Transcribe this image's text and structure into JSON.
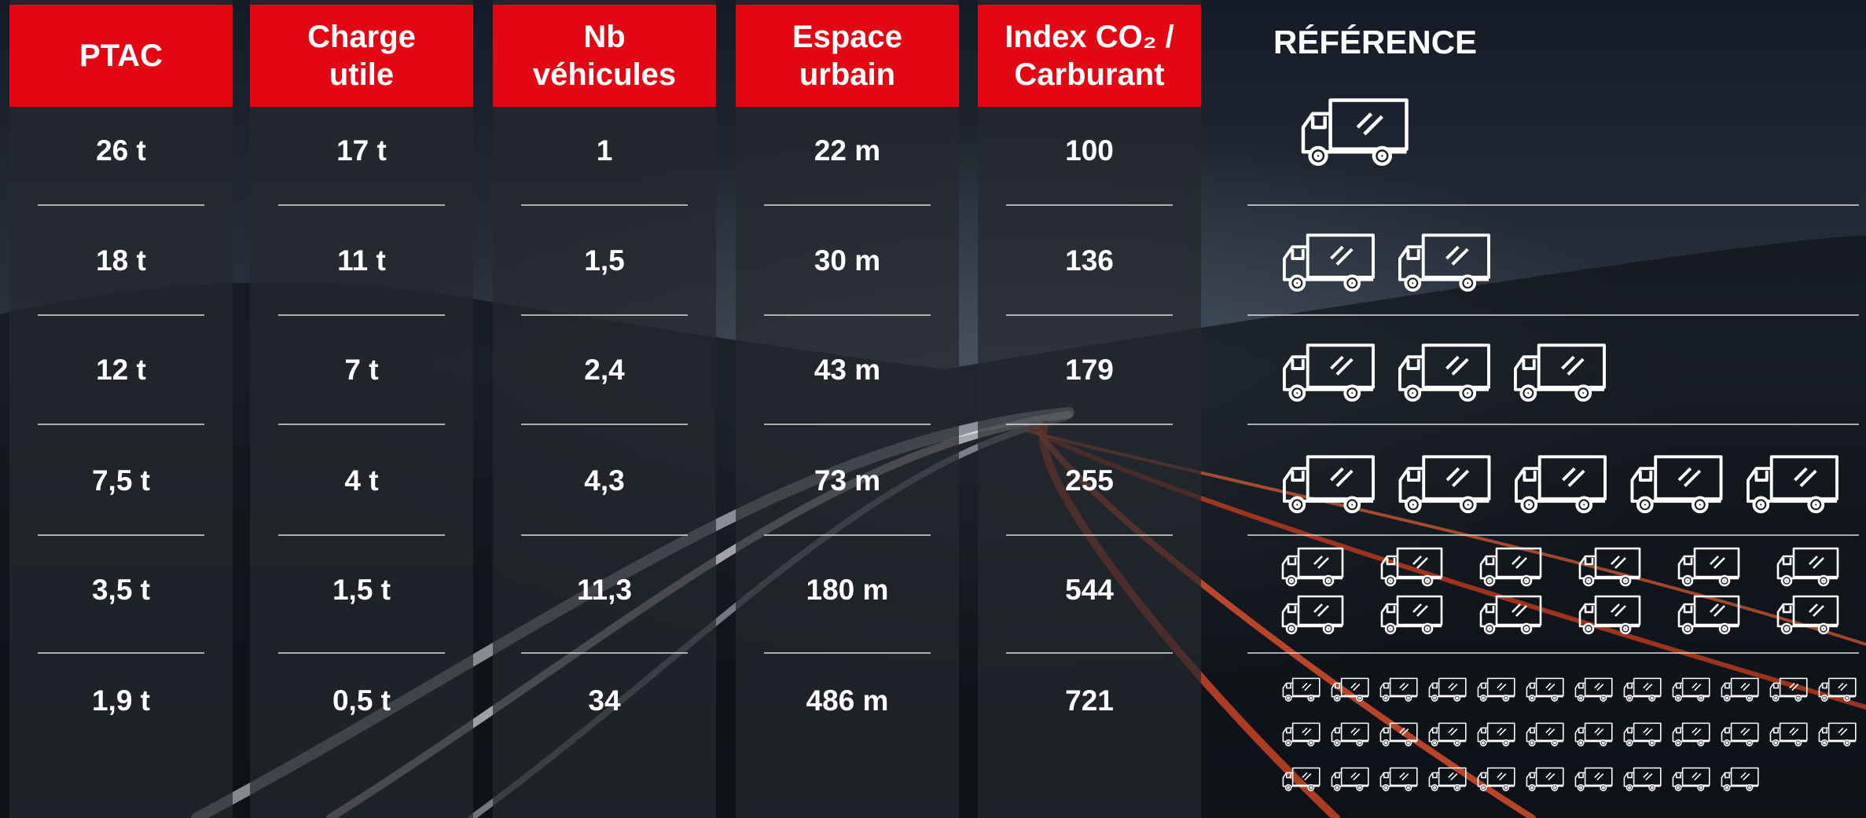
{
  "table": {
    "headers": [
      "PTAC",
      "Charge\nutile",
      "Nb\nvéhicules",
      "Espace\nurbain",
      "Index CO₂ /\nCarburant"
    ],
    "rows": [
      [
        "26 t",
        "17 t",
        "1",
        "22 m",
        "100"
      ],
      [
        "18 t",
        "11 t",
        "1,5",
        "30 m",
        "136"
      ],
      [
        "12 t",
        "7 t",
        "2,4",
        "43 m",
        "179"
      ],
      [
        "7,5 t",
        "4 t",
        "4,3",
        "73 m",
        "255"
      ],
      [
        "3,5 t",
        "1,5 t",
        "11,3",
        "180 m",
        "544"
      ],
      [
        "1,9 t",
        "0,5 t",
        "34",
        "486 m",
        "721"
      ]
    ]
  },
  "reference": {
    "title": "RÉFÉRENCE",
    "rows": [
      {
        "vehicles": 1
      },
      {
        "vehicles": 2
      },
      {
        "vehicles": 3
      },
      {
        "vehicles": 5
      },
      {
        "vehicles": 12
      },
      {
        "vehicles": 34
      }
    ]
  }
}
